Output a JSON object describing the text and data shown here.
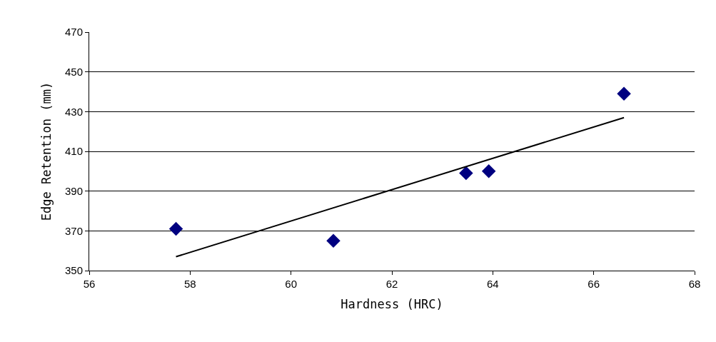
{
  "chart_data": {
    "type": "scatter",
    "xlabel": "Hardness (HRC)",
    "ylabel": "Edge Retention (mm)",
    "series": [
      {
        "color": "#000080",
        "marker": "diamond",
        "x": [
          57.72,
          60.84,
          63.47,
          63.92,
          66.6
        ],
        "values": [
          371,
          365,
          399,
          400,
          439
        ]
      },
      {
        "type": "line",
        "color": "#000000",
        "marker": "none",
        "x": [
          57.72,
          66.6
        ],
        "values": [
          357,
          427
        ]
      }
    ],
    "xlim": [
      56,
      68
    ],
    "xticks": [
      56,
      58,
      60,
      62,
      64,
      66,
      68
    ],
    "ylim": [
      350,
      470
    ],
    "yticks": [
      350,
      370,
      390,
      410,
      430,
      450,
      470
    ],
    "grid": "y",
    "legend": false
  }
}
